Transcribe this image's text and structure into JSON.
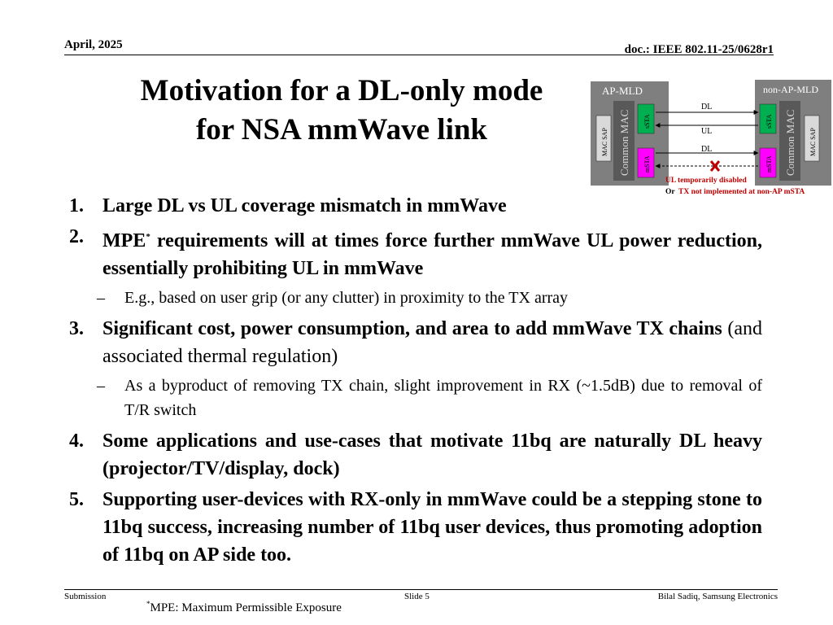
{
  "header": {
    "date": "April, 2025",
    "doc": "doc.: IEEE 802.11-25/0628r1"
  },
  "title": {
    "line1": "Motivation for a DL-only mode",
    "line2": "for NSA mmWave link"
  },
  "diagram": {
    "ap_label": "AP-MLD",
    "nonap_label": "non-AP-MLD",
    "mac_sap": "MAC SAP",
    "common_mac": "Common MAC",
    "ssta": "sSTA",
    "msta": "mSTA",
    "link_dl1": "DL",
    "link_ul": "UL",
    "link_dl2": "DL",
    "note_line1": "UL temporarily disabled",
    "note_or": "Or",
    "note_line2": "TX not implemented at non-AP mSTA",
    "colors": {
      "box_bg": "#d9d9d9",
      "ssta": "#00b050",
      "msta": "#ff00ff",
      "disabled": "#c00000",
      "panel": "#7f7f7f"
    }
  },
  "items": [
    {
      "num": "1.",
      "text": "Large DL vs UL coverage mismatch in mmWave"
    },
    {
      "num": "2.",
      "text_a": "MPE",
      "sup": "*",
      "text_b": " requirements will at times force further mmWave UL power reduction, essentially prohibiting UL in mmWave",
      "sub": "E.g., based on user grip (or any clutter) in proximity to the TX array"
    },
    {
      "num": "3.",
      "text_bold": "Significant cost, power consumption, and area to add mmWave TX chains",
      "text_regular": " (and associated thermal regulation)",
      "sub": "As a byproduct of removing TX chain, slight improvement in RX (~1.5dB) due to removal of T/R switch"
    },
    {
      "num": "4.",
      "text": "Some applications and use-cases that motivate 11bq are naturally DL heavy (projector/TV/display, dock)"
    },
    {
      "num": "5.",
      "text": "Supporting user-devices with RX-only in mmWave could be a stepping stone to 11bq success, increasing number of 11bq user devices, thus promoting adoption of 11bq on AP side too."
    }
  ],
  "sub_dash": "–",
  "footer": {
    "submission": "Submission",
    "slide": "Slide 5",
    "author": "Bilal Sadiq, Samsung Electronics",
    "note_sup": "*",
    "note": "MPE: Maximum Permissible Exposure"
  }
}
